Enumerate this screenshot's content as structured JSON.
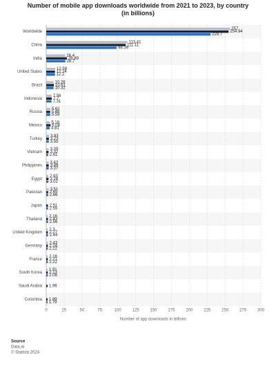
{
  "chart_data": {
    "type": "hbar",
    "title": "Number of mobile app downloads worldwide from 2021 to 2023, by country (in billions)",
    "x_label": "Number of app downloads in billions",
    "categories": [
      "Worldwide",
      "China",
      "India",
      "United States",
      "Brazil",
      "Indonesia",
      "Russia",
      "Mexico",
      "Turkey",
      "Vietnam",
      "Philippines",
      "Egypt",
      "Pakistan",
      "Japan",
      "Thailand",
      "United Kingdom",
      "Germany",
      "France",
      "South Korea",
      "Saudi Arabia",
      "Colombia"
    ],
    "series": [
      {
        "color": "#b7bbc2",
        "values": [
          257,
          113.41,
          26.4,
          12.58,
          10.26,
          7.56,
          5.62,
          5.18,
          3.83,
          3.39,
          3.42,
          2.93,
          3.51,
          null,
          2.16,
          2.3,
          2.43,
          2.16,
          1.91,
          null,
          null
        ]
      },
      {
        "color": "#1b2739",
        "values": [
          254.94,
          111.11,
          28.89,
          12.24,
          10.61,
          7.7,
          5.48,
          6.08,
          3.73,
          3.32,
          3.49,
          3.28,
          2.65,
          2.51,
          2.43,
          2.27,
          2.24,
          2.21,
          2.13,
          1.96,
          1.89
        ]
      },
      {
        "color": "#1f6fd6",
        "values": [
          229.7,
          98.39,
          26.7,
          12.2,
          10.32,
          7.31,
          5.59,
          4.81,
          3.55,
          2.61,
          3.37,
          3.02,
          2.66,
          2.55,
          2.56,
          2.44,
          2.22,
          2.22,
          2.08,
          null,
          1.79
        ]
      }
    ],
    "xlim": [
      0,
      300
    ],
    "xticks": [
      0,
      25,
      50,
      75,
      100,
      125,
      150,
      175,
      200,
      225,
      250,
      275,
      300
    ],
    "grid": true,
    "footer": {
      "source_label": "Source",
      "source": "Data.ai",
      "copyright": "© Statista 2024"
    }
  }
}
